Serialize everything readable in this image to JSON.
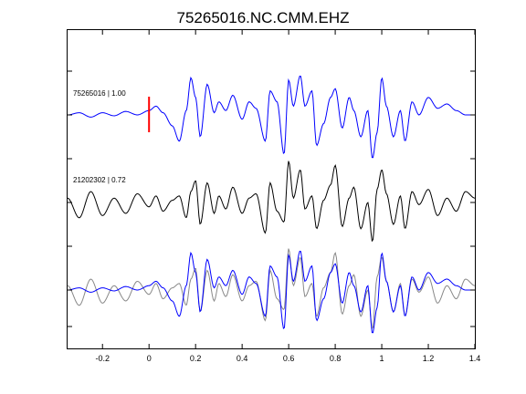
{
  "chart_data": {
    "type": "line",
    "title": "75265016.NC.CMM.EHZ",
    "xlabel": "",
    "ylabel": "",
    "xlim": [
      -0.35,
      1.4
    ],
    "x_ticks": [
      -0.2,
      0,
      0.2,
      0.4,
      0.6,
      0.8,
      1,
      1.2,
      1.4
    ],
    "x_tick_labels": [
      "-0.2",
      "0",
      "0.2",
      "0.4",
      "0.6",
      "0.8",
      "1",
      "1.2",
      "1.4"
    ],
    "grid": false,
    "pick_marker": {
      "x": 0,
      "color": "#ff0000"
    },
    "traces": [
      {
        "label": "75265016 | 1.00",
        "color": "#0000ff",
        "offset": 2
      },
      {
        "label": "21202302 | 0.72",
        "color": "#000000",
        "offset": 1
      }
    ],
    "overlay": {
      "colors": [
        "#0000ff",
        "#888888"
      ],
      "offset": 0
    },
    "keypoints": {
      "x": [
        -0.35,
        -0.3,
        -0.25,
        -0.2,
        -0.15,
        -0.1,
        -0.05,
        0,
        0.03,
        0.06,
        0.1,
        0.13,
        0.16,
        0.18,
        0.2,
        0.22,
        0.25,
        0.28,
        0.3,
        0.33,
        0.36,
        0.4,
        0.43,
        0.46,
        0.5,
        0.52,
        0.55,
        0.58,
        0.6,
        0.62,
        0.65,
        0.67,
        0.7,
        0.72,
        0.75,
        0.78,
        0.8,
        0.83,
        0.86,
        0.88,
        0.91,
        0.94,
        0.96,
        0.98,
        1.0,
        1.02,
        1.05,
        1.08,
        1.1,
        1.13,
        1.16,
        1.2,
        1.24,
        1.28,
        1.32,
        1.36,
        1.4
      ],
      "a": [
        0.0,
        0.05,
        -0.05,
        0.05,
        -0.02,
        0.08,
        0.0,
        0.1,
        0.2,
        0.05,
        -0.25,
        -0.6,
        0.1,
        0.85,
        0.4,
        -0.5,
        0.7,
        0.05,
        0.3,
        0.1,
        0.45,
        -0.1,
        0.3,
        0.15,
        -0.6,
        0.55,
        0.3,
        -0.9,
        0.8,
        0.2,
        0.9,
        0.2,
        0.55,
        -0.7,
        -0.2,
        0.4,
        0.6,
        -0.3,
        0.4,
        0.1,
        -0.5,
        0.1,
        -1.0,
        -0.4,
        0.85,
        0.2,
        -0.5,
        0.1,
        -0.6,
        0.3,
        0.0,
        0.4,
        0.15,
        0.25,
        0.1,
        0.0,
        0.0
      ],
      "b": [
        0.1,
        -0.35,
        0.25,
        -0.3,
        0.1,
        -0.25,
        0.2,
        -0.1,
        0.15,
        -0.2,
        0.05,
        0.15,
        -0.35,
        0.25,
        0.5,
        -0.5,
        0.45,
        -0.25,
        0.15,
        -0.15,
        0.35,
        -0.25,
        0.1,
        0.2,
        -0.7,
        0.45,
        -0.2,
        -0.45,
        0.95,
        0.1,
        0.75,
        -0.15,
        0.15,
        -0.6,
        0.05,
        0.4,
        0.85,
        -0.55,
        0.1,
        0.35,
        -0.6,
        0.0,
        -0.9,
        0.3,
        0.75,
        0.2,
        -0.5,
        0.15,
        -0.6,
        0.25,
        -0.05,
        0.3,
        -0.3,
        0.1,
        -0.2,
        0.25,
        0.1
      ]
    }
  }
}
